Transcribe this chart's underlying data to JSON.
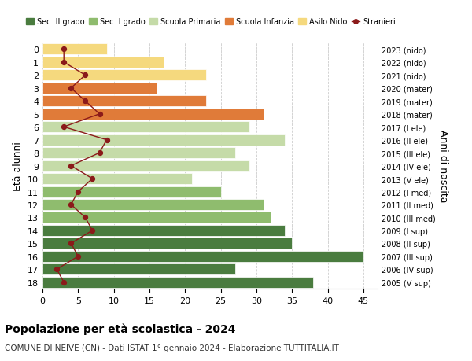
{
  "ages": [
    18,
    17,
    16,
    15,
    14,
    13,
    12,
    11,
    10,
    9,
    8,
    7,
    6,
    5,
    4,
    3,
    2,
    1,
    0
  ],
  "bar_values": [
    38,
    27,
    45,
    35,
    34,
    32,
    31,
    25,
    21,
    29,
    27,
    34,
    29,
    31,
    23,
    16,
    23,
    17,
    9
  ],
  "bar_colors": [
    "#4a7c3f",
    "#4a7c3f",
    "#4a7c3f",
    "#4a7c3f",
    "#4a7c3f",
    "#8fbc6e",
    "#8fbc6e",
    "#8fbc6e",
    "#c5dba8",
    "#c5dba8",
    "#c5dba8",
    "#c5dba8",
    "#c5dba8",
    "#e07b39",
    "#e07b39",
    "#e07b39",
    "#f5d97e",
    "#f5d97e",
    "#f5d97e"
  ],
  "right_labels": [
    "2005 (V sup)",
    "2006 (IV sup)",
    "2007 (III sup)",
    "2008 (II sup)",
    "2009 (I sup)",
    "2010 (III med)",
    "2011 (II med)",
    "2012 (I med)",
    "2013 (V ele)",
    "2014 (IV ele)",
    "2015 (III ele)",
    "2016 (II ele)",
    "2017 (I ele)",
    "2018 (mater)",
    "2019 (mater)",
    "2020 (mater)",
    "2021 (nido)",
    "2022 (nido)",
    "2023 (nido)"
  ],
  "stranieri_values": [
    3,
    2,
    5,
    4,
    7,
    6,
    4,
    5,
    7,
    4,
    8,
    9,
    3,
    8,
    6,
    4,
    6,
    3,
    3
  ],
  "legend_labels": [
    "Sec. II grado",
    "Sec. I grado",
    "Scuola Primaria",
    "Scuola Infanzia",
    "Asilo Nido",
    "Stranieri"
  ],
  "legend_colors": [
    "#4a7c3f",
    "#8fbc6e",
    "#c5dba8",
    "#e07b39",
    "#f5d97e",
    "#8b1a1a"
  ],
  "ylabel": "Età alunni",
  "right_ylabel": "Anni di nascita",
  "title": "Popolazione per età scolastica - 2024",
  "subtitle": "COMUNE DI NEIVE (CN) - Dati ISTAT 1° gennaio 2024 - Elaborazione TUTTITALIA.IT",
  "xlim": [
    0,
    47
  ],
  "xticks": [
    0,
    5,
    10,
    15,
    20,
    25,
    30,
    35,
    40,
    45
  ],
  "background_color": "#ffffff",
  "grid_color": "#cccccc"
}
